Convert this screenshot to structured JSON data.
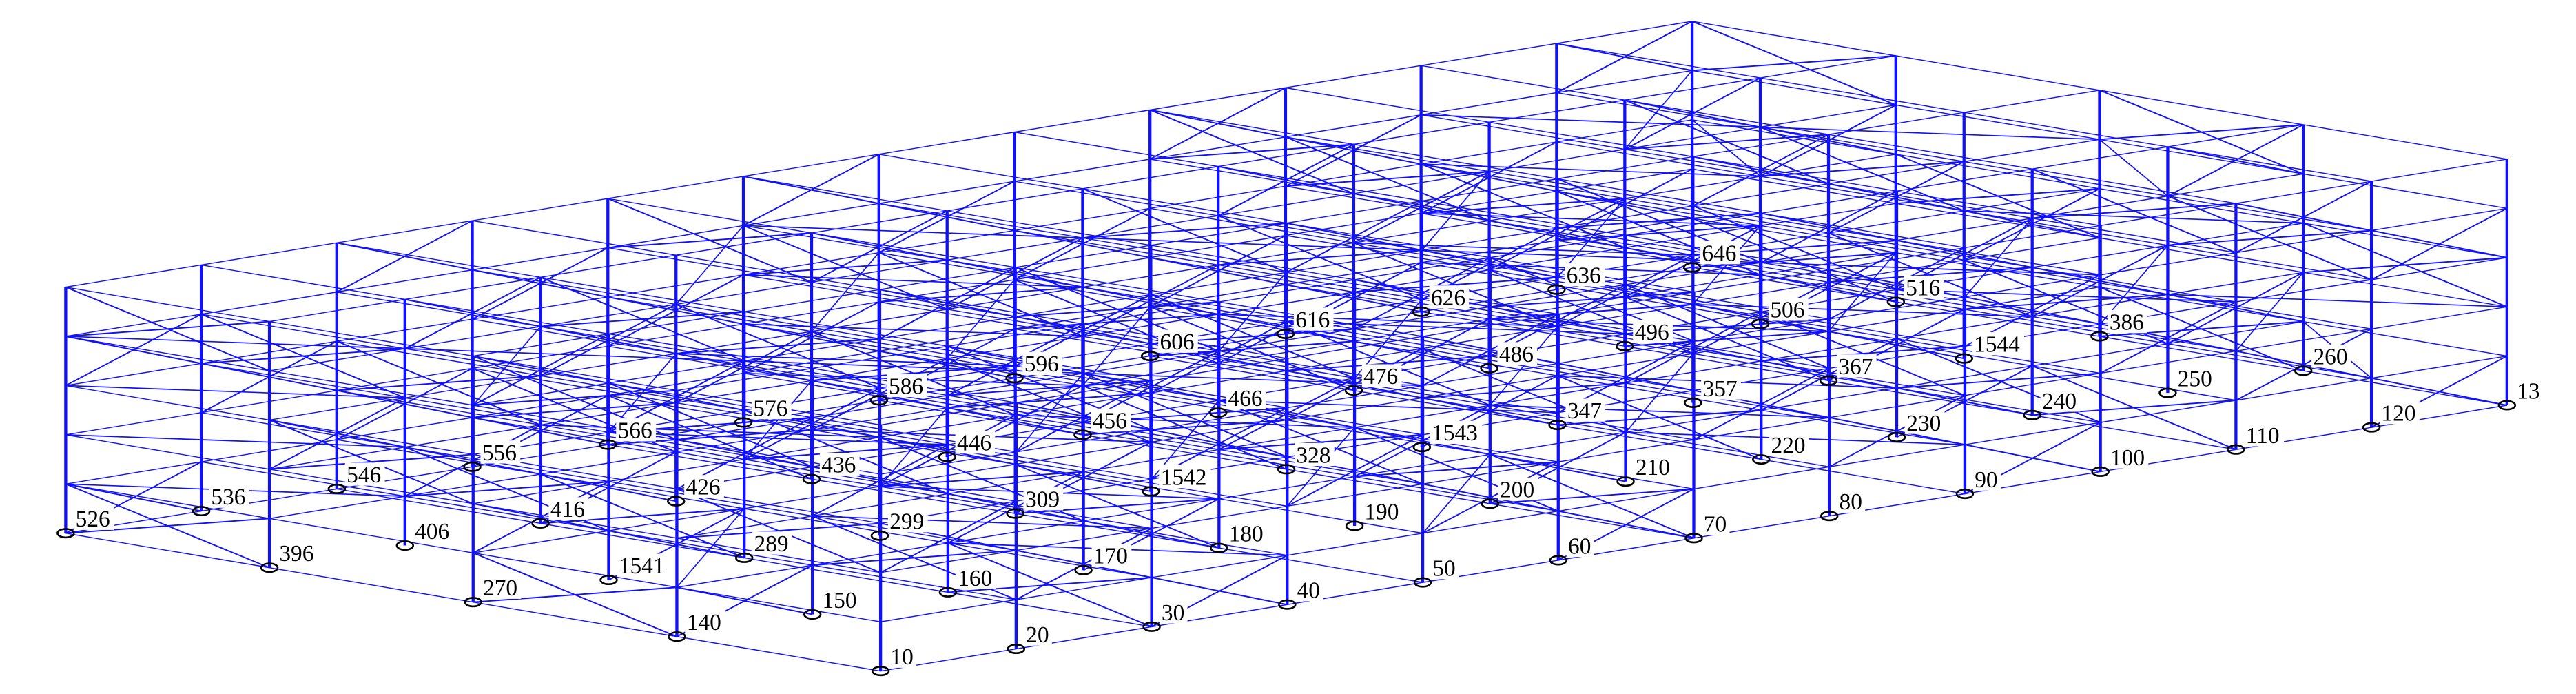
{
  "diagram": {
    "type": "3d-structural-frame-wireframe",
    "member_color": "#1010ff",
    "support_color": "#000000",
    "label_color": "#000000",
    "support_icon": "pinned-support-ellipse",
    "node_labels": [
      [
        "526",
        "536",
        "546",
        "556",
        "566",
        "576",
        "586",
        "596",
        "606",
        "616",
        "626",
        "636",
        "646"
      ],
      [
        "396",
        "406",
        "416",
        "426",
        "436",
        "446",
        "456",
        "466",
        "476",
        "486",
        "496",
        "506",
        "516"
      ],
      [
        "270",
        "1541",
        "289",
        "299",
        "309",
        "1542",
        "328",
        "1543",
        "347",
        "357",
        "367",
        "1544",
        "386"
      ],
      [
        "140",
        "150",
        "160",
        "170",
        "180",
        "190",
        "200",
        "210",
        "220",
        "230",
        "240",
        "250",
        "260"
      ],
      [
        "10",
        "20",
        "30",
        "40",
        "50",
        "60",
        "70",
        "80",
        "90",
        "100",
        "110",
        "120",
        "13"
      ]
    ]
  }
}
